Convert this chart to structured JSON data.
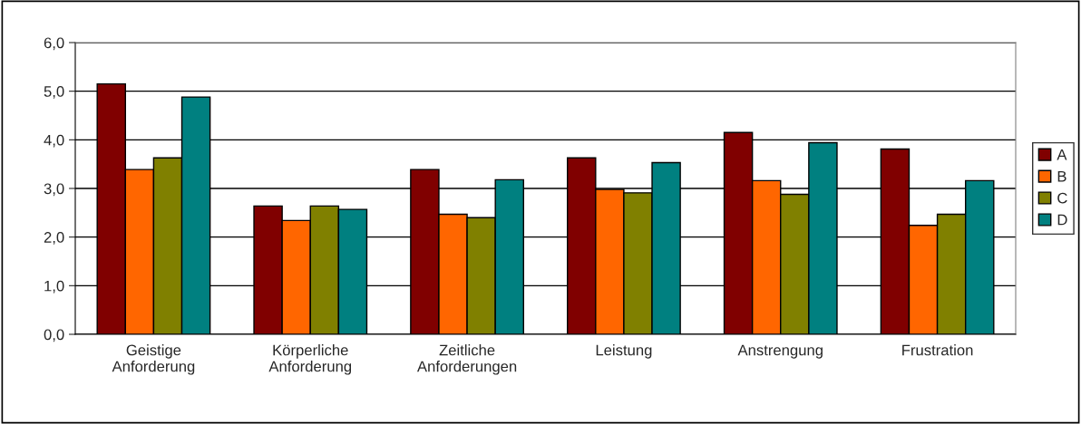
{
  "chart_data": {
    "type": "bar",
    "categories": [
      "Geistige\nAnforderung",
      "Körperliche\nAnforderung",
      "Zeitliche\nAnforderungen",
      "Leistung",
      "Anstrengung",
      "Frustration"
    ],
    "series": [
      {
        "name": "A",
        "color": "#800000",
        "values": [
          5.15,
          2.64,
          3.39,
          3.63,
          4.15,
          3.81
        ]
      },
      {
        "name": "B",
        "color": "#ff6600",
        "values": [
          3.39,
          2.34,
          2.47,
          2.98,
          3.16,
          2.24
        ]
      },
      {
        "name": "C",
        "color": "#808000",
        "values": [
          3.63,
          2.64,
          2.4,
          2.91,
          2.88,
          2.47
        ]
      },
      {
        "name": "D",
        "color": "#008080",
        "values": [
          4.88,
          2.57,
          3.18,
          3.53,
          3.94,
          3.16
        ]
      }
    ],
    "ylim": [
      0,
      6
    ],
    "yticks": [
      {
        "value": 0,
        "label": "0,0"
      },
      {
        "value": 1,
        "label": "1,0"
      },
      {
        "value": 2,
        "label": "2,0"
      },
      {
        "value": 3,
        "label": "3,0"
      },
      {
        "value": 4,
        "label": "4,0"
      },
      {
        "value": 5,
        "label": "5,0"
      },
      {
        "value": 6,
        "label": "6,0"
      }
    ],
    "grid": "y",
    "legend": "right"
  }
}
